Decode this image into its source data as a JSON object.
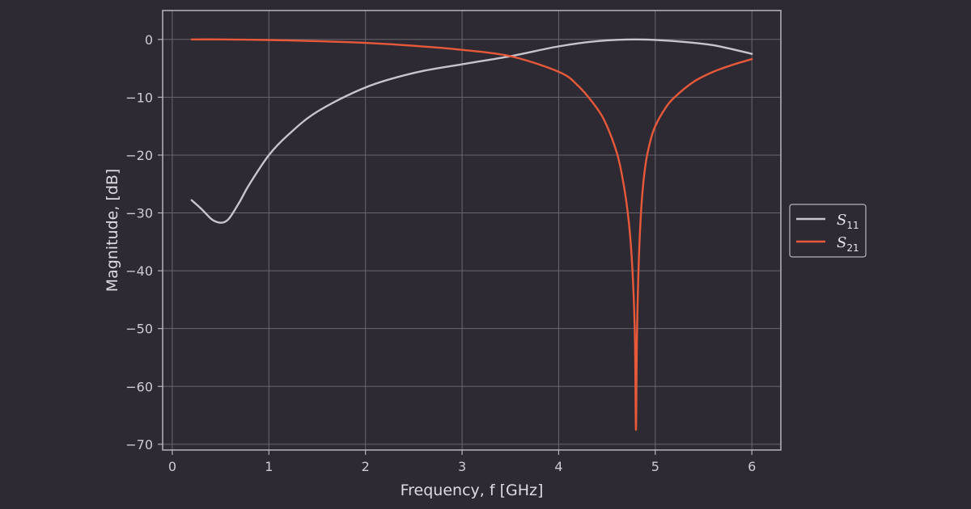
{
  "chart_data": {
    "type": "line",
    "title": "",
    "xlabel": "Frequency, f [GHz]",
    "ylabel": "Magnitude, [dB]",
    "xlim": [
      -0.1,
      6.3
    ],
    "ylim": [
      -71,
      5
    ],
    "xticks": [
      0,
      1,
      2,
      3,
      4,
      5,
      6
    ],
    "yticks": [
      0,
      -10,
      -20,
      -30,
      -40,
      -50,
      -60,
      -70
    ],
    "xtick_labels": [
      "0",
      "1",
      "2",
      "3",
      "4",
      "5",
      "6"
    ],
    "ytick_labels": [
      "0",
      "−10",
      "−20",
      "−30",
      "−40",
      "−50",
      "−60",
      "−70"
    ],
    "grid": true,
    "legend_position": "right-center",
    "series": [
      {
        "name": "S11",
        "legend_main": "S",
        "legend_sub": "11",
        "color": "#c8c4cc",
        "x": [
          0.2,
          0.3,
          0.4,
          0.45,
          0.5,
          0.55,
          0.6,
          0.7,
          0.8,
          1.0,
          1.2,
          1.5,
          2.0,
          2.5,
          3.0,
          3.5,
          4.0,
          4.4,
          4.8,
          5.2,
          5.6,
          6.0
        ],
        "y": [
          -27.8,
          -29.3,
          -31.0,
          -31.5,
          -31.7,
          -31.5,
          -30.7,
          -28.0,
          -25.0,
          -20.0,
          -16.5,
          -12.5,
          -8.3,
          -5.8,
          -4.3,
          -2.9,
          -1.2,
          -0.3,
          0.0,
          -0.3,
          -1.0,
          -2.5
        ]
      },
      {
        "name": "S21",
        "legend_main": "S",
        "legend_sub": "21",
        "color": "#e8593a",
        "x": [
          0.2,
          0.5,
          1.0,
          1.5,
          2.0,
          2.5,
          3.0,
          3.5,
          4.0,
          4.2,
          4.4,
          4.5,
          4.6,
          4.65,
          4.7,
          4.74,
          4.77,
          4.79,
          4.8,
          4.81,
          4.83,
          4.86,
          4.9,
          4.95,
          5.0,
          5.1,
          5.2,
          5.4,
          5.6,
          5.8,
          6.0
        ],
        "y": [
          0.0,
          0.0,
          -0.1,
          -0.3,
          -0.6,
          -1.1,
          -1.8,
          -2.9,
          -5.6,
          -8.0,
          -12.0,
          -15.0,
          -19.5,
          -23.0,
          -28.0,
          -34.0,
          -42.0,
          -52.0,
          -67.5,
          -52.0,
          -38.0,
          -28.0,
          -21.5,
          -17.5,
          -15.0,
          -12.0,
          -10.0,
          -7.3,
          -5.6,
          -4.4,
          -3.4
        ]
      }
    ]
  },
  "theme": {
    "background": "#2e2a33",
    "axes_frame": "#b9b5bd",
    "grid": "#6a666e",
    "tick_text": "#d0ccd4",
    "legend_border": "#b9b5bd"
  }
}
